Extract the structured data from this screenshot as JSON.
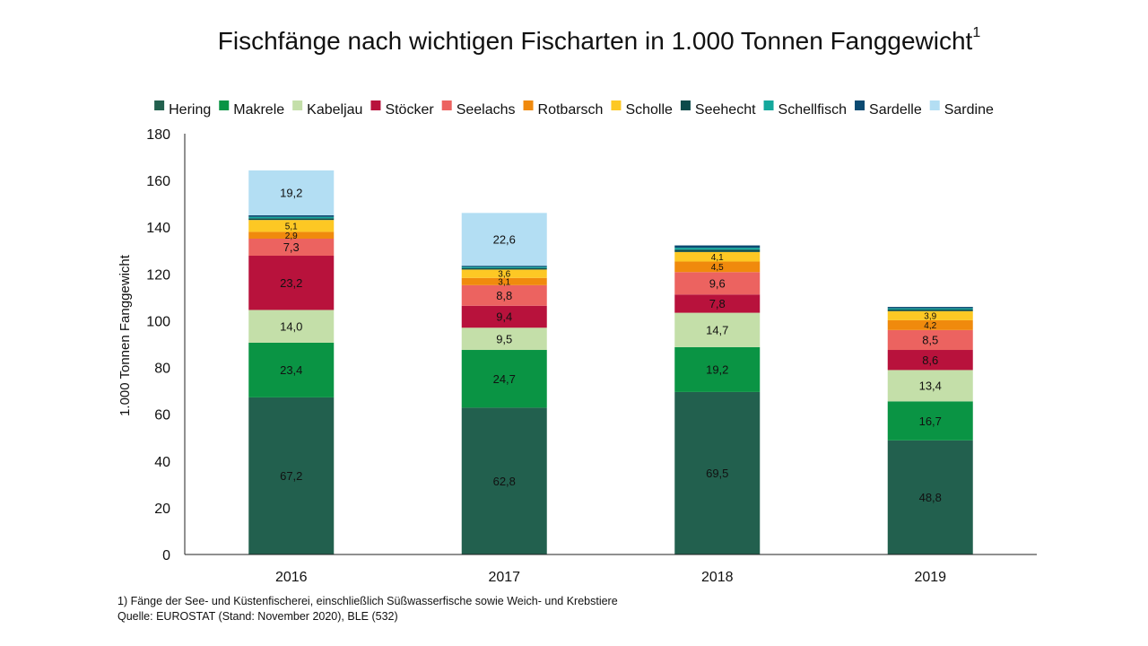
{
  "chart_data": {
    "type": "bar",
    "stacked": true,
    "title": "Fischfänge nach wichtigen Fischarten in 1.000 Tonnen Fanggewicht",
    "title_footnote_mark": "1",
    "ylabel": "1.000 Tonnen Fanggewicht",
    "xlabel": "",
    "ylim": [
      0,
      180
    ],
    "yticks": [
      0,
      20,
      40,
      60,
      80,
      100,
      120,
      140,
      160,
      180
    ],
    "categories": [
      "2016",
      "2017",
      "2018",
      "2019"
    ],
    "legend_position": "top",
    "series": [
      {
        "name": "Hering",
        "color": "#22604e",
        "values": [
          67.2,
          62.8,
          69.5,
          48.8
        ],
        "labels": [
          "67,2",
          "62,8",
          "69,5",
          "48,8"
        ]
      },
      {
        "name": "Makrele",
        "color": "#0a9444",
        "values": [
          23.4,
          24.7,
          19.2,
          16.7
        ],
        "labels": [
          "23,4",
          "24,7",
          "19,2",
          "16,7"
        ]
      },
      {
        "name": "Kabeljau",
        "color": "#c4dfa9",
        "values": [
          14.0,
          9.5,
          14.7,
          13.4
        ],
        "labels": [
          "14,0",
          "9,5",
          "14,7",
          "13,4"
        ]
      },
      {
        "name": "Stöcker",
        "color": "#b8123c",
        "values": [
          23.2,
          9.4,
          7.8,
          8.6
        ],
        "labels": [
          "23,2",
          "9,4",
          "7,8",
          "8,6"
        ]
      },
      {
        "name": "Seelachs",
        "color": "#ec6360",
        "values": [
          7.3,
          8.8,
          9.6,
          8.5
        ],
        "labels": [
          "7,3",
          "8,8",
          "9,6",
          "8,5"
        ]
      },
      {
        "name": "Rotbarsch",
        "color": "#f08a0d",
        "values": [
          2.9,
          3.1,
          4.5,
          4.2
        ],
        "labels": [
          "2,9",
          "3,1",
          "4,5",
          "4,2"
        ]
      },
      {
        "name": "Scholle",
        "color": "#fdc824",
        "values": [
          5.1,
          3.6,
          4.1,
          3.9
        ],
        "labels": [
          "5,1",
          "3,6",
          "4,1",
          "3,9"
        ]
      },
      {
        "name": "Seehecht",
        "color": "#0c4a4a",
        "values": [
          0.7,
          0.6,
          1.0,
          0.7
        ],
        "labels": [
          "",
          "",
          "",
          ""
        ]
      },
      {
        "name": "Schellfisch",
        "color": "#14a89c",
        "values": [
          0.6,
          0.5,
          0.8,
          0.5
        ],
        "labels": [
          "",
          "",
          "",
          ""
        ]
      },
      {
        "name": "Sardelle",
        "color": "#0b4a72",
        "values": [
          0.7,
          0.5,
          1.0,
          0.6
        ],
        "labels": [
          "",
          "",
          "",
          ""
        ]
      },
      {
        "name": "Sardine",
        "color": "#b3def3",
        "values": [
          19.2,
          22.6,
          0.0,
          0.0
        ],
        "labels": [
          "19,2",
          "22,6",
          "",
          ""
        ]
      }
    ]
  },
  "footnote": {
    "line1": "1) Fänge der See- und Küstenfischerei, einschließlich Süßwasserfische sowie Weich- und Krebstiere",
    "line2": "Quelle: EUROSTAT (Stand: November 2020), BLE (532)"
  }
}
